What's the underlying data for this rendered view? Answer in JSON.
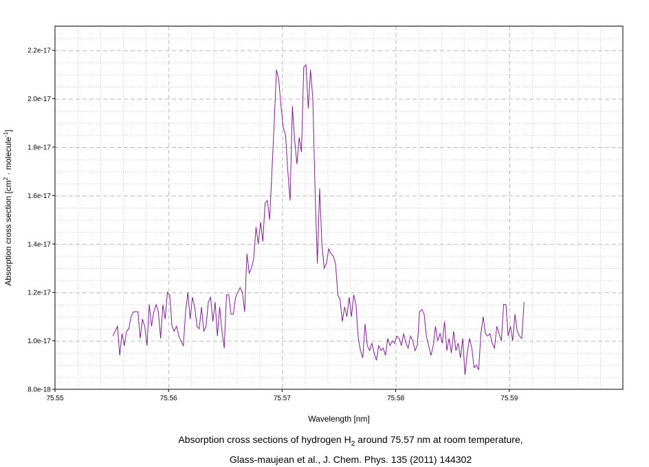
{
  "chart_data": {
    "type": "line",
    "title": "",
    "xlabel": "Wavelength [nm]",
    "ylabel": {
      "base": "Absorption cross section [cm",
      "sup1": "2",
      "mid": " · molecule",
      "sup2": "-1",
      "end": "]"
    },
    "xlim": [
      75.55,
      75.6
    ],
    "ylim": [
      8e-18,
      2.3e-17
    ],
    "x_ticks": [
      75.55,
      75.56,
      75.57,
      75.58,
      75.59
    ],
    "x_tick_labels": [
      "75.55",
      "75.56",
      "75.57",
      "75.58",
      "75.59"
    ],
    "y_ticks": [
      8e-18,
      1e-17,
      1.2e-17,
      1.4e-17,
      1.6e-17,
      1.8e-17,
      2e-17,
      2.2e-17
    ],
    "y_tick_labels": [
      "8.0e-18",
      "1.0e-17",
      "1.2e-17",
      "1.4e-17",
      "1.6e-17",
      "1.8e-17",
      "2.0e-17",
      "2.2e-17"
    ],
    "grid": true,
    "series": [
      {
        "color": "#7a1e8c",
        "x_start": 75.5551,
        "x_step": 0.0002,
        "y": [
          1.02e-17,
          1.04e-17,
          1.06e-17,
          9.4e-18,
          1.03e-17,
          9.8e-18,
          1.04e-17,
          1.05e-17,
          1.1e-17,
          1.12e-17,
          1.12e-17,
          1.12e-17,
          1.01e-17,
          1.09e-17,
          1.06e-17,
          9.8e-18,
          1.15e-17,
          1.06e-17,
          1.12e-17,
          1.15e-17,
          1.12e-17,
          1.01e-17,
          1.15e-17,
          1.09e-17,
          1.2e-17,
          1.19e-17,
          1.06e-17,
          1.04e-17,
          1.06e-17,
          1.02e-17,
          1e-17,
          9.8e-18,
          1.12e-17,
          1.2e-17,
          1.09e-17,
          1.18e-17,
          1.14e-17,
          1.06e-17,
          1.05e-17,
          1.14e-17,
          1.04e-17,
          1.06e-17,
          1.16e-17,
          1.18e-17,
          1.08e-17,
          1.16e-17,
          1.02e-17,
          1.14e-17,
          1.04e-17,
          9.7e-18,
          1.19e-17,
          1.19e-17,
          1.11e-17,
          1.11e-17,
          1.18e-17,
          1.2e-17,
          1.22e-17,
          1.2e-17,
          1.12e-17,
          1.36e-17,
          1.28e-17,
          1.3e-17,
          1.34e-17,
          1.47e-17,
          1.4e-17,
          1.49e-17,
          1.41e-17,
          1.57e-17,
          1.58e-17,
          1.5e-17,
          1.7e-17,
          1.9e-17,
          2.12e-17,
          2.08e-17,
          1.97e-17,
          1.88e-17,
          1.85e-17,
          1.7e-17,
          1.58e-17,
          1.97e-17,
          1.83e-17,
          1.73e-17,
          1.84e-17,
          1.78e-17,
          2.13e-17,
          2.14e-17,
          1.96e-17,
          2.12e-17,
          2e-17,
          1.62e-17,
          1.32e-17,
          1.63e-17,
          1.4e-17,
          1.3e-17,
          1.32e-17,
          1.38e-17,
          1.36e-17,
          1.35e-17,
          1.32e-17,
          1.19e-17,
          1.17e-17,
          1.08e-17,
          1.14e-17,
          1.1e-17,
          1.18e-17,
          1.1e-17,
          1.19e-17,
          1.15e-17,
          1.01e-17,
          9.6e-18,
          9.3e-18,
          1.07e-17,
          9.8e-18,
          9.6e-18,
          9.9e-18,
          9.5e-18,
          9.2e-18,
          9.8e-18,
          9.6e-18,
          9.7e-18,
          9.4e-18,
          1.01e-17,
          9.8e-18,
          1e-17,
          9.9e-18,
          1.02e-17,
          1.01e-17,
          9.8e-18,
          1.03e-17,
          9.9e-18,
          9.7e-18,
          1.02e-17,
          1e-17,
          9.6e-18,
          9.8e-18,
          1.12e-17,
          1.13e-17,
          1.11e-17,
          1.02e-17,
          9.8e-18,
          9.4e-18,
          9.8e-18,
          1.06e-17,
          1e-17,
          1.03e-17,
          9.9e-18,
          1.08e-17,
          9.6e-18,
          1.01e-17,
          9.5e-18,
          1.04e-17,
          9.6e-18,
          9.9e-18,
          9.3e-18,
          1.01e-17,
          8.6e-18,
          9.5e-18,
          1.01e-17,
          9.7e-18,
          8.9e-18,
          9e-18,
          8.8e-18,
          1.03e-17,
          1.1e-17,
          1.03e-17,
          1.02e-17,
          1.03e-17,
          9.9e-18,
          9.7e-18,
          1.06e-17,
          1.03e-17,
          1e-17,
          1.15e-17,
          1.15e-17,
          1.02e-17,
          1.06e-17,
          1e-17,
          1.11e-17,
          1.04e-17,
          1.02e-17,
          1.01e-17,
          1.16e-17
        ]
      }
    ]
  },
  "caption": {
    "line1_a": "Absorption cross sections of hydrogen H",
    "line1_sub": "2",
    "line1_b": " around 75.57 nm at room temperature,",
    "line2": "Glass-maujean et al., J. Chem. Phys. 135 (2011) 144302"
  }
}
